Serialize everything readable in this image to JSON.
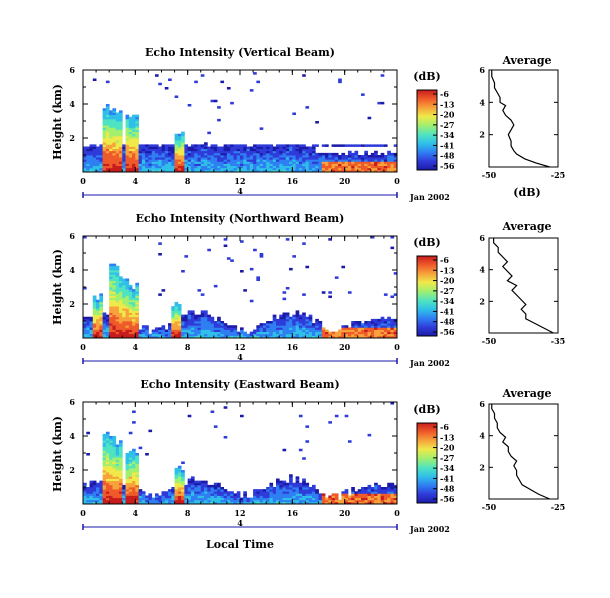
{
  "figure": {
    "xlabel": "Local Time",
    "date_label": "Jan 2002",
    "day_marker": "4"
  },
  "colorscale": {
    "title": "(dB)",
    "ticks": [
      "-6",
      "-13",
      "-20",
      "-27",
      "-34",
      "-41",
      "-48",
      "-56"
    ],
    "range": [
      -56,
      -6
    ],
    "colors": [
      "#1b1ba8",
      "#2f3bd9",
      "#2f7ff2",
      "#2fbfe8",
      "#4fe3c1",
      "#a3ef6e",
      "#efe94a",
      "#f7a23b",
      "#ee5a2a",
      "#c81d1d"
    ]
  },
  "chart_data": [
    {
      "type": "heatmap",
      "title": "Echo Intensity (Vertical Beam)",
      "ylabel": "Height (km)",
      "xlim": [
        0,
        24
      ],
      "ylim": [
        0,
        6
      ],
      "xticks": [
        "0",
        "4",
        "8",
        "12",
        "16",
        "20",
        "0"
      ],
      "yticks": [
        "2",
        "4",
        "6"
      ],
      "stripe_height_km": 1.55,
      "convective_cells": [
        {
          "time": 1.8,
          "top_km": 4.0
        },
        {
          "time": 2.5,
          "top_km": 3.8
        },
        {
          "time": 3.6,
          "top_km": 3.4
        },
        {
          "time": 7.2,
          "top_km": 2.4
        }
      ],
      "average_profile": {
        "title": "Average",
        "xlabel": "(dB)",
        "xlim": [
          -50,
          -25
        ],
        "xticks": [
          "-50",
          "-25"
        ],
        "yticks": [
          "2",
          "4",
          "6"
        ],
        "heights_km": [
          0.0,
          0.25,
          0.5,
          0.8,
          1.0,
          1.3,
          1.6,
          2.0,
          2.3,
          2.6,
          2.9,
          3.2,
          3.5,
          3.8,
          4.0,
          4.3,
          4.6,
          4.9,
          5.2,
          5.6,
          6.0
        ],
        "values_db": [
          -28,
          -33,
          -37,
          -40,
          -41,
          -42,
          -42,
          -43,
          -42,
          -41,
          -42,
          -44,
          -45,
          -44,
          -46,
          -46,
          -47,
          -48,
          -48,
          -49,
          -49
        ]
      }
    },
    {
      "type": "heatmap",
      "title": "Echo Intensity (Northward Beam)",
      "ylabel": "Height (km)",
      "xlim": [
        0,
        24
      ],
      "ylim": [
        0,
        6
      ],
      "xticks": [
        "0",
        "4",
        "8",
        "12",
        "16",
        "20",
        "0"
      ],
      "yticks": [
        "2",
        "4",
        "6"
      ],
      "stripe_height_km": null,
      "convective_cells": [
        {
          "time": 1.0,
          "top_km": 2.6
        },
        {
          "time": 2.2,
          "top_km": 4.5
        },
        {
          "time": 3.0,
          "top_km": 3.8
        },
        {
          "time": 3.8,
          "top_km": 3.2
        },
        {
          "time": 7.0,
          "top_km": 2.2
        }
      ],
      "average_profile": {
        "title": "Average",
        "xlabel": "",
        "xlim": [
          -50,
          -35
        ],
        "xticks": [
          "-50",
          "-35"
        ],
        "yticks": [
          "2",
          "4",
          "6"
        ],
        "heights_km": [
          0.0,
          0.3,
          0.6,
          0.9,
          1.2,
          1.5,
          1.8,
          2.1,
          2.4,
          2.7,
          3.0,
          3.3,
          3.6,
          3.9,
          4.2,
          4.5,
          4.8,
          5.1,
          5.4,
          5.7,
          6.0
        ],
        "values_db": [
          -36,
          -38,
          -40,
          -42,
          -42,
          -43,
          -42,
          -43,
          -44,
          -45,
          -44,
          -46,
          -45,
          -46,
          -47,
          -46,
          -47,
          -48,
          -48,
          -49,
          -49
        ]
      }
    },
    {
      "type": "heatmap",
      "title": "Echo Intensity (Eastward Beam)",
      "ylabel": "Height (km)",
      "xlim": [
        0,
        24
      ],
      "ylim": [
        0,
        6
      ],
      "xticks": [
        "0",
        "4",
        "8",
        "12",
        "16",
        "20",
        "0"
      ],
      "yticks": [
        "2",
        "4",
        "6"
      ],
      "stripe_height_km": null,
      "convective_cells": [
        {
          "time": 1.8,
          "top_km": 4.3
        },
        {
          "time": 2.5,
          "top_km": 3.7
        },
        {
          "time": 3.6,
          "top_km": 3.3
        },
        {
          "time": 7.3,
          "top_km": 2.3
        }
      ],
      "average_profile": {
        "title": "Average",
        "xlabel": "",
        "xlim": [
          -50,
          -25
        ],
        "xticks": [
          "-50",
          "-25"
        ],
        "yticks": [
          "2",
          "4",
          "6"
        ],
        "heights_km": [
          0.0,
          0.3,
          0.6,
          0.9,
          1.2,
          1.5,
          1.8,
          2.1,
          2.4,
          2.7,
          3.0,
          3.3,
          3.6,
          3.9,
          4.2,
          4.5,
          4.8,
          5.1,
          5.4,
          5.7,
          6.0
        ],
        "values_db": [
          -28,
          -32,
          -35,
          -38,
          -39,
          -40,
          -40,
          -41,
          -40,
          -42,
          -43,
          -43,
          -45,
          -44,
          -46,
          -47,
          -47,
          -48,
          -48,
          -49,
          -49
        ]
      }
    }
  ]
}
